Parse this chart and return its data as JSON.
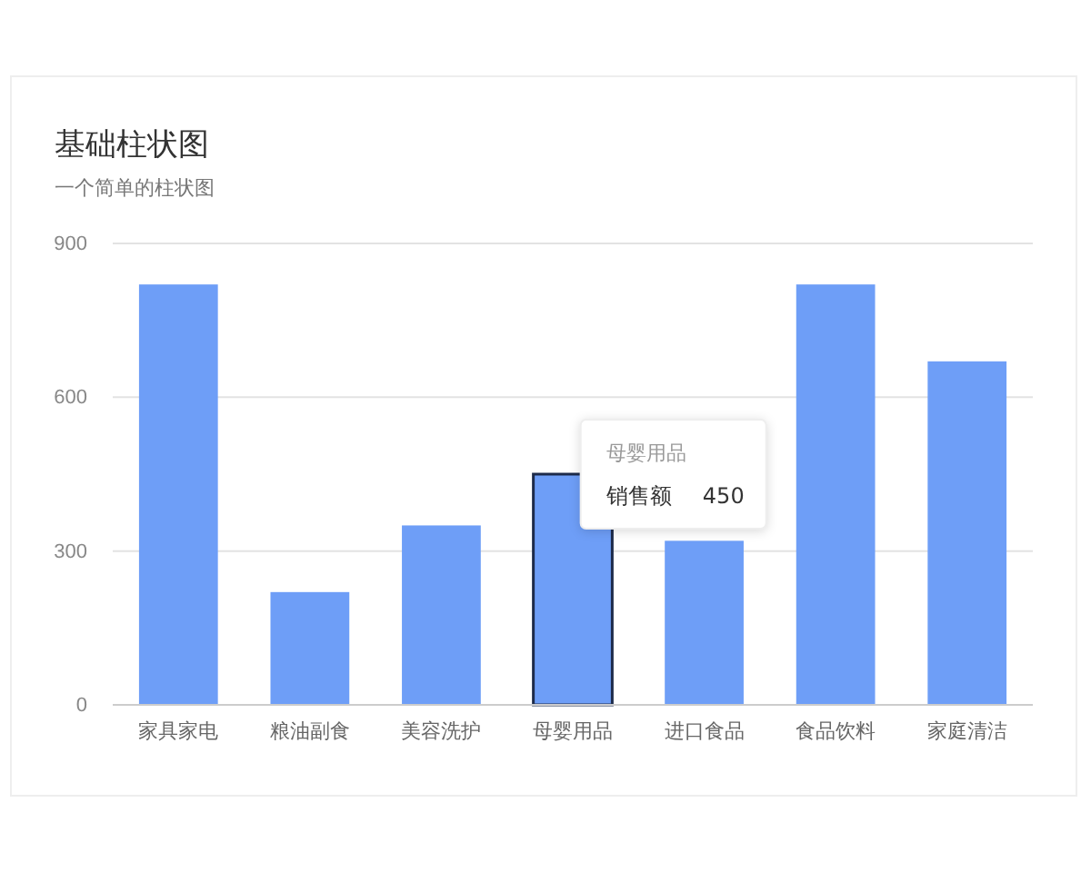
{
  "chart_data": {
    "type": "bar",
    "title": "基础柱状图",
    "subtitle": "一个简单的柱状图",
    "categories": [
      "家具家电",
      "粮油副食",
      "美容洗护",
      "母婴用品",
      "进口食品",
      "食品饮料",
      "家庭清洁"
    ],
    "values": [
      820,
      220,
      350,
      450,
      320,
      820,
      670
    ],
    "color": "#6e9ef7",
    "ylim": [
      0,
      900
    ],
    "yticks": [
      0,
      300,
      600,
      900
    ],
    "grid": "y",
    "annotations": [
      {
        "text": "母婴用品",
        "x": "母婴用品",
        "y": 450
      },
      "销售额",
      "450"
    ]
  }
}
